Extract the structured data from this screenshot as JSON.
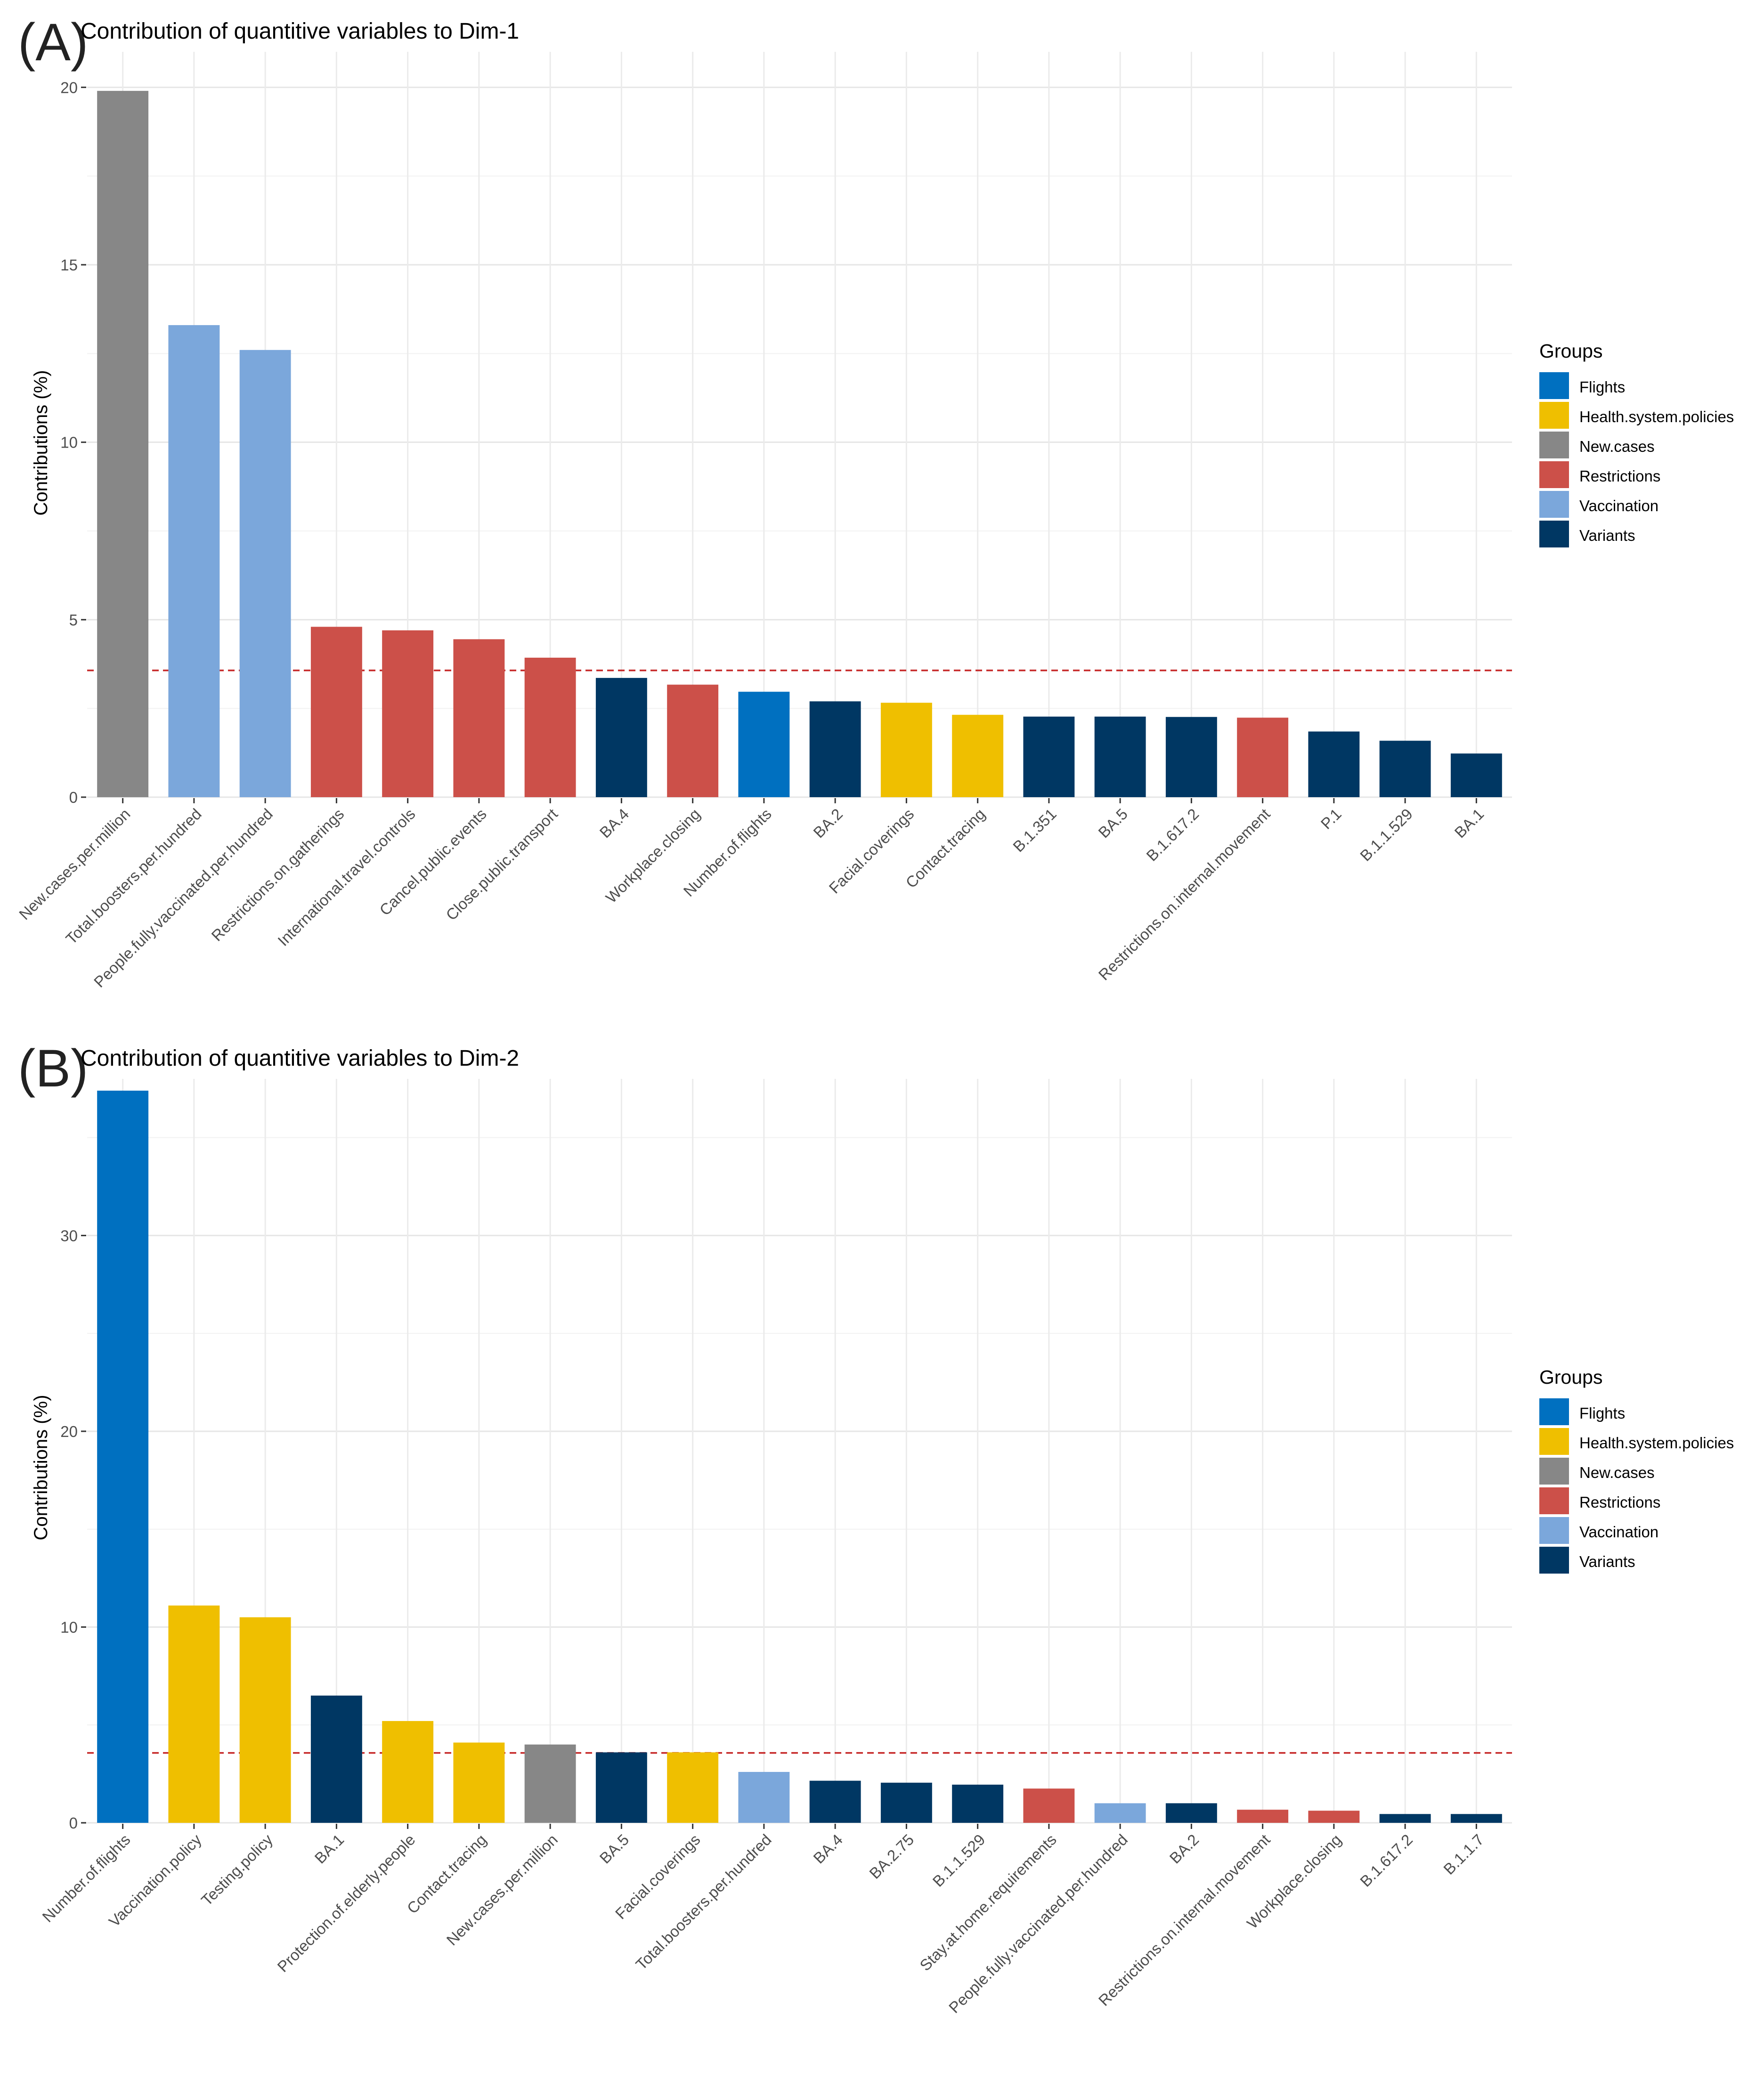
{
  "figure": {
    "panels": [
      {
        "label": "(A)",
        "title": "Contribution of quantitive variables to Dim-1"
      },
      {
        "label": "(B)",
        "title": "Contribution of quantitive variables to Dim-2"
      }
    ]
  },
  "groups_legend": {
    "title": "Groups",
    "items": [
      {
        "name": "Flights",
        "color": "#0070C0"
      },
      {
        "name": "Health.system.policies",
        "color": "#EFBF00"
      },
      {
        "name": "New.cases",
        "color": "#878787"
      },
      {
        "name": "Restrictions",
        "color": "#CC5049"
      },
      {
        "name": "Vaccination",
        "color": "#7BA7DB"
      },
      {
        "name": "Variants",
        "color": "#003763"
      }
    ]
  },
  "chart_data": [
    {
      "type": "bar",
      "title": "Contribution of quantitive variables to Dim-1",
      "xlabel": "",
      "ylabel": "Contributions (%)",
      "ylim": [
        0,
        21
      ],
      "yticks": [
        0,
        5,
        10,
        15,
        20
      ],
      "reference_line": 3.57,
      "categories": [
        "New.cases.per.million",
        "Total.boosters.per.hundred",
        "People.fully.vaccinated.per.hundred",
        "Restrictions.on.gatherings",
        "International.travel.controls",
        "Cancel.public.events",
        "Close.public.transport",
        "BA.4",
        "Workplace.closing",
        "Number.of.flights",
        "BA.2",
        "Facial.coverings",
        "Contact.tracing",
        "B.1.351",
        "BA.5",
        "B.1.617.2",
        "Restrictions.on.internal.movement",
        "P.1",
        "B.1.1.529",
        "BA.1"
      ],
      "values": [
        19.9,
        13.3,
        12.6,
        4.8,
        4.7,
        4.45,
        3.93,
        3.36,
        3.17,
        2.97,
        2.7,
        2.66,
        2.32,
        2.27,
        2.27,
        2.26,
        2.24,
        1.85,
        1.59,
        1.23
      ],
      "groups": [
        "New.cases",
        "Vaccination",
        "Vaccination",
        "Restrictions",
        "Restrictions",
        "Restrictions",
        "Restrictions",
        "Variants",
        "Restrictions",
        "Flights",
        "Variants",
        "Health.system.policies",
        "Health.system.policies",
        "Variants",
        "Variants",
        "Variants",
        "Restrictions",
        "Variants",
        "Variants",
        "Variants"
      ]
    },
    {
      "type": "bar",
      "title": "Contribution of quantitive variables to Dim-2",
      "xlabel": "",
      "ylabel": "Contributions (%)",
      "ylim": [
        0,
        38
      ],
      "yticks": [
        0,
        10,
        20,
        30
      ],
      "reference_line": 3.57,
      "categories": [
        "Number.of.flights",
        "Vaccination.policy",
        "Testing.policy",
        "BA.1",
        "Protection.of.elderly.people",
        "Contact.tracing",
        "New.cases.per.million",
        "BA.5",
        "Facial.coverings",
        "Total.boosters.per.hundred",
        "BA.4",
        "BA.2.75",
        "B.1.1.529",
        "Stay.at.home.requirements",
        "People.fully.vaccinated.per.hundred",
        "BA.2",
        "Restrictions.on.internal.movement",
        "Workplace.closing",
        "B.1.617.2",
        "B.1.1.7"
      ],
      "values": [
        37.4,
        11.1,
        10.5,
        6.5,
        5.2,
        4.1,
        4.0,
        3.6,
        3.6,
        2.6,
        2.15,
        2.05,
        1.95,
        1.75,
        1.0,
        1.0,
        0.67,
        0.62,
        0.45,
        0.45
      ],
      "groups": [
        "Flights",
        "Health.system.policies",
        "Health.system.policies",
        "Variants",
        "Health.system.policies",
        "Health.system.policies",
        "New.cases",
        "Variants",
        "Health.system.policies",
        "Vaccination",
        "Variants",
        "Variants",
        "Variants",
        "Restrictions",
        "Vaccination",
        "Variants",
        "Restrictions",
        "Restrictions",
        "Variants",
        "Variants"
      ]
    }
  ]
}
